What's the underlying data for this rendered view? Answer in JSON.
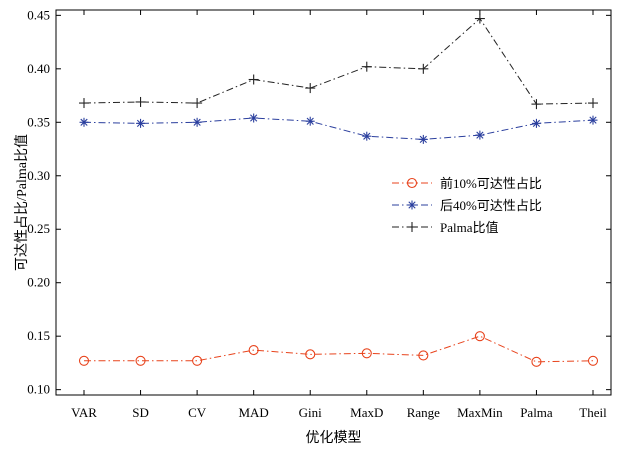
{
  "chart_data": {
    "type": "line",
    "title": "",
    "xlabel": "优化模型",
    "ylabel": "可达性占比/Palma比值",
    "categories": [
      "VAR",
      "SD",
      "CV",
      "MAD",
      "Gini",
      "MaxD",
      "Range",
      "MaxMin",
      "Palma",
      "Theil"
    ],
    "ylim": [
      0.095,
      0.455
    ],
    "yticks": [
      0.1,
      0.15,
      0.2,
      0.25,
      0.3,
      0.35,
      0.4,
      0.45
    ],
    "ytick_labels": [
      "0.10",
      "0.15",
      "0.20",
      "0.25",
      "0.30",
      "0.35",
      "0.40",
      "0.45"
    ],
    "grid": false,
    "legend_position": "right",
    "series": [
      {
        "name": "前10%可达性占比",
        "color": "#e8431c",
        "marker": "circle",
        "values": [
          0.127,
          0.127,
          0.127,
          0.137,
          0.133,
          0.134,
          0.132,
          0.15,
          0.126,
          0.127
        ]
      },
      {
        "name": "后40%可达性占比",
        "color": "#2b3f9e",
        "marker": "asterisk",
        "values": [
          0.35,
          0.349,
          0.35,
          0.354,
          0.351,
          0.337,
          0.334,
          0.338,
          0.349,
          0.352
        ]
      },
      {
        "name": "Palma比值",
        "color": "#222222",
        "marker": "plus",
        "values": [
          0.368,
          0.369,
          0.368,
          0.39,
          0.382,
          0.402,
          0.4,
          0.447,
          0.367,
          0.368
        ]
      }
    ]
  }
}
